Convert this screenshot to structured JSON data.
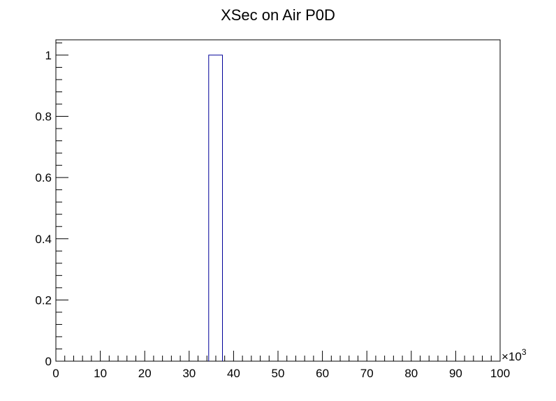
{
  "chart_data": {
    "type": "bar",
    "title": "XSec on Air P0D",
    "xlabel": "",
    "ylabel": "",
    "x_multiplier_label": "×10",
    "x_multiplier_exponent": "3",
    "xlim": [
      0,
      100
    ],
    "ylim": [
      0,
      1.05
    ],
    "x_major_ticks": [
      0,
      10,
      20,
      30,
      40,
      50,
      60,
      70,
      80,
      90,
      100
    ],
    "x_tick_labels": [
      "0",
      "10",
      "20",
      "30",
      "40",
      "50",
      "60",
      "70",
      "80",
      "90",
      "100"
    ],
    "y_major_ticks": [
      0,
      0.2,
      0.4,
      0.6,
      0.8,
      1
    ],
    "y_tick_labels": [
      "0",
      "0.2",
      "0.4",
      "0.6",
      "0.8",
      "1"
    ],
    "grid": false,
    "series": [
      {
        "bars": [
          {
            "x_start": 34.4,
            "x_end": 37.5,
            "value": 1
          }
        ]
      }
    ],
    "colors": {
      "bar_line": "#000099",
      "axes": "#000000"
    }
  }
}
